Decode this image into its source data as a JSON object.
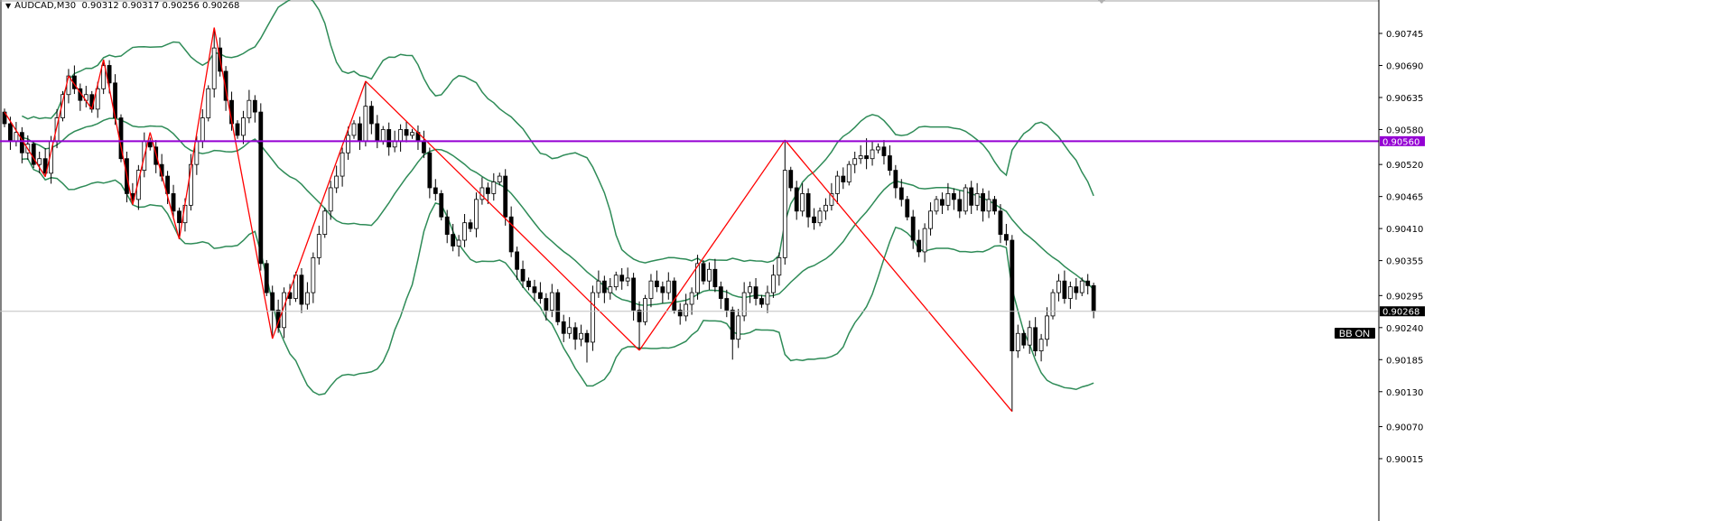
{
  "header": {
    "symbol_timeframe": "AUDCAD,M30",
    "ohlc_text": "0.90312 0.90317 0.90256 0.90268"
  },
  "badge": {
    "label": "BB ON"
  },
  "colors": {
    "background": "#ffffff",
    "bull_body": "#ffffff",
    "bear_body": "#000000",
    "bollinger": "#2e8b57",
    "zigzag": "#ff0000",
    "level_line": "#9400d3",
    "price_line": "#c0c0c0",
    "axis": "#000000"
  },
  "chart_data": {
    "type": "candlestick",
    "title": "AUDCAD,M30",
    "symbol": "AUDCAD",
    "timeframe": "M30",
    "ylim": [
      0.8999,
      0.908
    ],
    "y_ticks": [
      "0.90745",
      "0.90690",
      "0.90635",
      "0.90580",
      "0.90520",
      "0.90465",
      "0.90410",
      "0.90355",
      "0.90295",
      "0.90240",
      "0.90185",
      "0.90130",
      "0.90070",
      "0.90015"
    ],
    "current_price": {
      "value": 0.90268,
      "label": "0.90268"
    },
    "horizontal_level": {
      "value": 0.9056,
      "label": "0.90560"
    },
    "last_candle": {
      "open": 0.90312,
      "high": 0.90317,
      "low": 0.90256,
      "close": 0.90268
    },
    "close": [
      0.9059,
      0.9056,
      0.90575,
      0.9054,
      0.90555,
      0.9052,
      0.9053,
      0.90505,
      0.9056,
      0.906,
      0.9064,
      0.90672,
      0.9065,
      0.9063,
      0.9064,
      0.90615,
      0.9065,
      0.9069,
      0.9066,
      0.906,
      0.9053,
      0.9047,
      0.9046,
      0.9051,
      0.9056,
      0.9055,
      0.9052,
      0.905,
      0.9047,
      0.9044,
      0.9042,
      0.9045,
      0.9052,
      0.9056,
      0.906,
      0.9065,
      0.9072,
      0.9068,
      0.9063,
      0.9059,
      0.9057,
      0.906,
      0.9063,
      0.9061,
      0.9035,
      0.903,
      0.9027,
      0.9024,
      0.903,
      0.9029,
      0.9033,
      0.9028,
      0.903,
      0.9036,
      0.904,
      0.9044,
      0.9048,
      0.905,
      0.9054,
      0.9057,
      0.9059,
      0.9056,
      0.9062,
      0.9059,
      0.9056,
      0.9058,
      0.9055,
      0.9056,
      0.9058,
      0.9057,
      0.90575,
      0.9056,
      0.9054,
      0.9048,
      0.9047,
      0.9043,
      0.904,
      0.9038,
      0.9039,
      0.9042,
      0.9041,
      0.9046,
      0.9048,
      0.9047,
      0.9049,
      0.905,
      0.9043,
      0.9037,
      0.9034,
      0.9032,
      0.9031,
      0.903,
      0.9029,
      0.9027,
      0.903,
      0.9025,
      0.9023,
      0.9024,
      0.9022,
      0.9023,
      0.90215,
      0.903,
      0.9032,
      0.903,
      0.9031,
      0.9033,
      0.9032,
      0.90325,
      0.9027,
      0.9025,
      0.9029,
      0.9032,
      0.9031,
      0.903,
      0.9032,
      0.9027,
      0.9026,
      0.9028,
      0.903,
      0.9035,
      0.9032,
      0.9034,
      0.9031,
      0.9029,
      0.9027,
      0.9022,
      0.9026,
      0.903,
      0.9031,
      0.9029,
      0.9028,
      0.903,
      0.9033,
      0.9036,
      0.9051,
      0.9048,
      0.9044,
      0.9047,
      0.9043,
      0.9042,
      0.9044,
      0.9045,
      0.9047,
      0.905,
      0.9049,
      0.9052,
      0.9053,
      0.90535,
      0.9053,
      0.90545,
      0.9055,
      0.90535,
      0.9051,
      0.9048,
      0.9046,
      0.9043,
      0.9039,
      0.9037,
      0.9041,
      0.9044,
      0.9046,
      0.9045,
      0.9047,
      0.9046,
      0.9044,
      0.9048,
      0.9045,
      0.9047,
      0.9044,
      0.9046,
      0.9044,
      0.904,
      0.9039,
      0.902,
      0.9023,
      0.9021,
      0.9024,
      0.902,
      0.9022,
      0.9026,
      0.903,
      0.9032,
      0.9029,
      0.9031,
      0.903,
      0.9032,
      0.90312,
      0.90268
    ],
    "notable_highs": {
      "17": 0.907,
      "36": 0.90755,
      "62": 0.90663,
      "134": 0.90562,
      "148": 0.90565
    },
    "notable_lows": {
      "7": 0.90499,
      "22": 0.90451,
      "30": 0.90392,
      "46": 0.90221,
      "100": 0.9018,
      "109": 0.90201,
      "125": 0.90185,
      "173": 0.90096,
      "187": 0.90256
    },
    "indicators": {
      "bollinger_bands": {
        "period": 20,
        "deviation": 2
      },
      "zigzag": [
        [
          0,
          0.9061
        ],
        [
          7,
          0.90499
        ],
        [
          11,
          0.90672
        ],
        [
          15,
          0.90615
        ],
        [
          17,
          0.907
        ],
        [
          22,
          0.90451
        ],
        [
          25,
          0.90575
        ],
        [
          30,
          0.90392
        ],
        [
          36,
          0.90755
        ],
        [
          46,
          0.90221
        ],
        [
          62,
          0.90663
        ],
        [
          109,
          0.90201
        ],
        [
          134,
          0.90562
        ],
        [
          173,
          0.90096
        ]
      ]
    },
    "grid": false
  }
}
